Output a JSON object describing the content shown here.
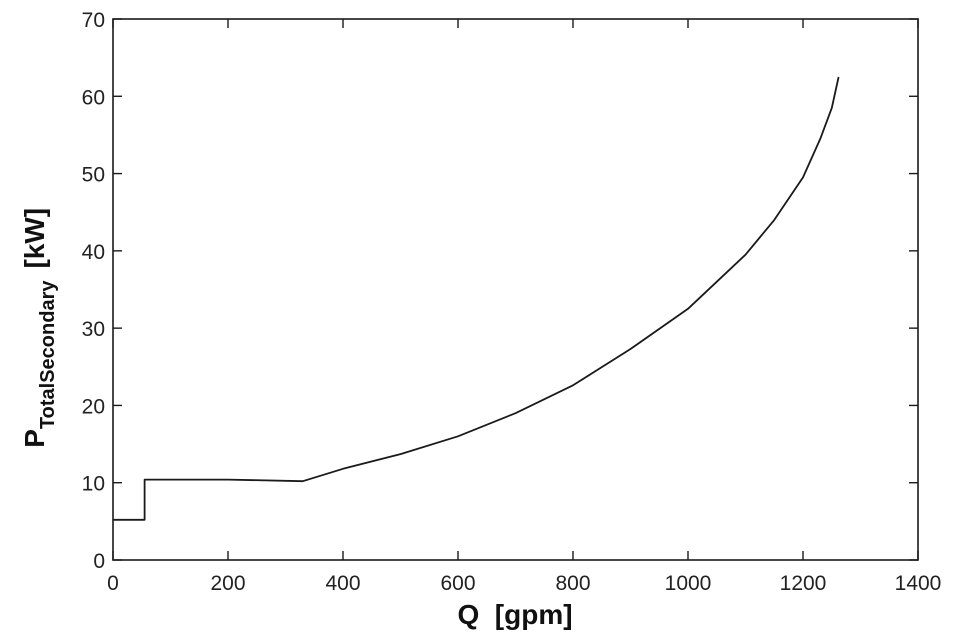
{
  "chart_data": {
    "type": "line",
    "title": "",
    "xlabel": "Q  [gpm]",
    "ylabel": {
      "main": "P",
      "subscript": "TotalSecondary",
      "unit": "[kW]"
    },
    "xlim": [
      0,
      1400
    ],
    "ylim": [
      0,
      70
    ],
    "xticks": [
      0,
      200,
      400,
      600,
      800,
      1000,
      1200,
      1400
    ],
    "yticks": [
      0,
      10,
      20,
      30,
      40,
      50,
      60,
      70
    ],
    "grid": false,
    "legend": "none",
    "line_color": "#1a1a1a",
    "series": [
      {
        "x": [
          0,
          50,
          50,
          55,
          55,
          200,
          330,
          400,
          500,
          600,
          700,
          800,
          900,
          1000,
          1100,
          1150,
          1200,
          1230,
          1250,
          1262
        ],
        "y": [
          5.2,
          5.2,
          5.2,
          5.2,
          10.4,
          10.4,
          10.2,
          11.8,
          13.7,
          16.0,
          19.0,
          22.6,
          27.3,
          32.5,
          39.5,
          44.0,
          49.5,
          54.5,
          58.5,
          62.5
        ]
      }
    ]
  }
}
